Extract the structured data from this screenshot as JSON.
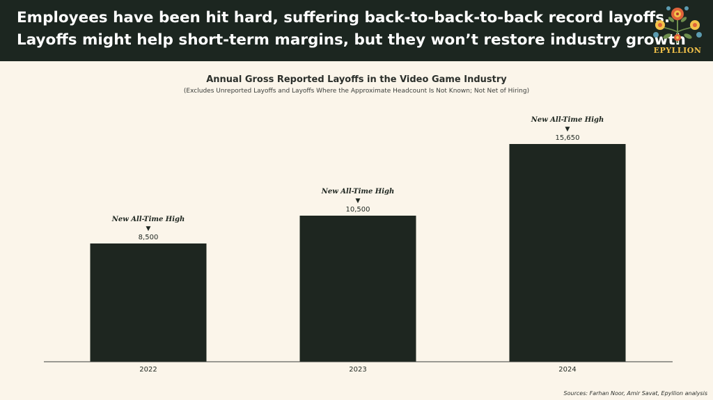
{
  "header": {
    "headline_line1": "Employees have been hit hard, suffering back-to-back-to-back record layoffs.",
    "headline_line2": "Layoffs might help short-term margins, but they won’t restore industry growth",
    "logo_text": "EPYLLION",
    "logo_icon": "floral-emblem-icon"
  },
  "colors": {
    "header_bg": "#1c2620",
    "page_bg": "#fbf5ea",
    "bar": "#1e2620",
    "logo_accent": "#f3c24a"
  },
  "chart_data": {
    "type": "bar",
    "title": "Annual Gross Reported Layoffs in the Video Game Industry",
    "subtitle": "(Excludes Unreported Layoffs and Layoffs Where the Approximate Headcount Is Not Known; Not Net of Hiring)",
    "categories": [
      "2022",
      "2023",
      "2024"
    ],
    "values": [
      8500,
      10500,
      15650
    ],
    "value_labels": [
      "8,500",
      "10,500",
      "15,650"
    ],
    "annotations": [
      "New All-Time High",
      "New All-Time High",
      "New All-Time High"
    ],
    "annotation_marker": "▼",
    "xlabel": "",
    "ylabel": "",
    "ylim": [
      0,
      18500
    ],
    "grid": false,
    "legend": false
  },
  "source": "Sources: Farhan Noor, Amir Savat, Epyllion analysis"
}
